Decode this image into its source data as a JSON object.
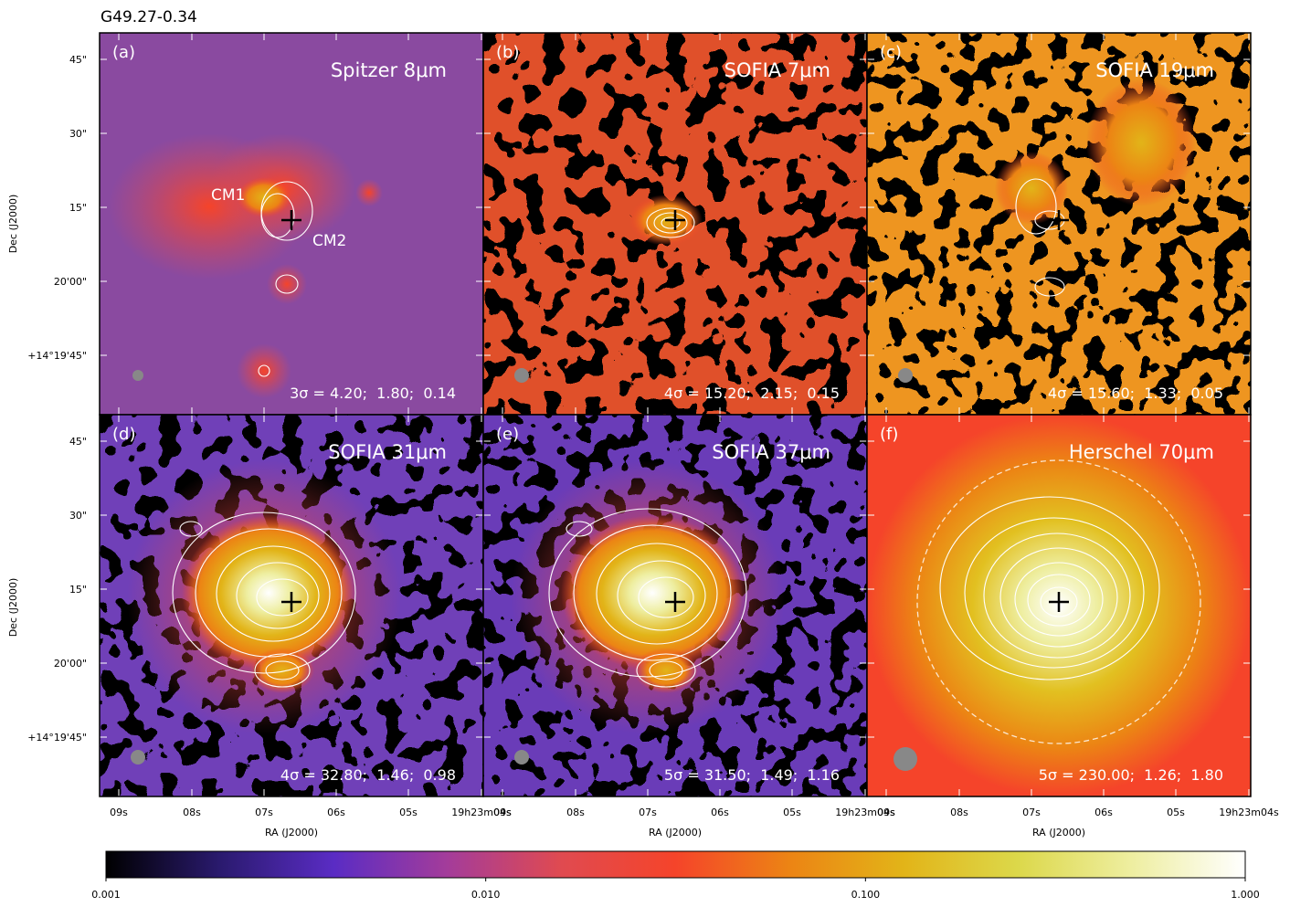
{
  "title": "G49.27-0.34",
  "y_axis_label": "Dec (J2000)",
  "x_axis_label": "RA (J2000)",
  "dec_ticks": [
    "45\"",
    "30\"",
    "15\"",
    "20'00\"",
    "+14°19'45\""
  ],
  "ra_ticks": [
    "09s",
    "08s",
    "07s",
    "06s",
    "05s",
    "19h23m04s"
  ],
  "panels": [
    {
      "letter": "(a)",
      "label": "Spitzer 8μm",
      "sigma": "3σ = 4.20;  1.80;  0.14",
      "annotations": [
        "CM1",
        "CM2"
      ]
    },
    {
      "letter": "(b)",
      "label": "SOFIA 7μm",
      "sigma": "4σ = 15.20;  2.15;  0.15"
    },
    {
      "letter": "(c)",
      "label": "SOFIA 19μm",
      "sigma": "4σ = 15.60;  1.33;  0.05"
    },
    {
      "letter": "(d)",
      "label": "SOFIA 31μm",
      "sigma": "4σ = 32.80;  1.46;  0.98"
    },
    {
      "letter": "(e)",
      "label": "SOFIA 37μm",
      "sigma": "5σ = 31.50;  1.49;  1.16"
    },
    {
      "letter": "(f)",
      "label": "Herschel 70μm",
      "sigma": "5σ = 230.00;  1.26;  1.80"
    }
  ],
  "colorbar": {
    "scale": "log",
    "lim": [
      0.001,
      1
    ],
    "ticks": [
      {
        "value": 0.001,
        "label": "0.001"
      },
      {
        "value": 0.01,
        "label": "0.010"
      },
      {
        "value": 0.1,
        "label": "0.100"
      },
      {
        "value": 1,
        "label": "1.000"
      }
    ],
    "colors": [
      "#000000",
      "#2a1a6e",
      "#5a2cc4",
      "#a43c9a",
      "#e04a50",
      "#f5442a",
      "#ec8414",
      "#e2b418",
      "#dcd84a",
      "#eeeea0",
      "#ffffff"
    ]
  }
}
